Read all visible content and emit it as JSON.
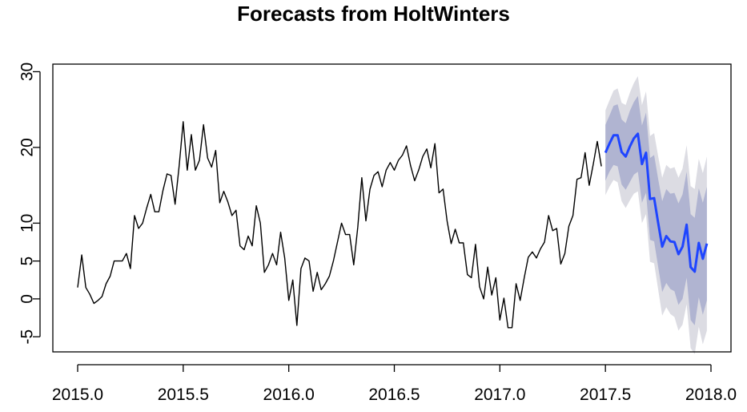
{
  "chart_data": {
    "type": "line",
    "title": "Forecasts from HoltWinters",
    "xlabel": "",
    "ylabel": "",
    "xlim": [
      2015.0,
      2018.0
    ],
    "ylim": [
      -7,
      31
    ],
    "x_ticks": [
      {
        "value": 2015.0,
        "label": "2015.0"
      },
      {
        "value": 2015.5,
        "label": "2015.5"
      },
      {
        "value": 2016.0,
        "label": "2016.0"
      },
      {
        "value": 2016.5,
        "label": "2016.5"
      },
      {
        "value": 2017.0,
        "label": "2017.0"
      },
      {
        "value": 2017.5,
        "label": "2017.5"
      },
      {
        "value": 2018.0,
        "label": "2018.0"
      }
    ],
    "y_ticks": [
      {
        "value": -5,
        "label": "-5"
      },
      {
        "value": 0,
        "label": "0"
      },
      {
        "value": 5,
        "label": "5"
      },
      {
        "value": 10,
        "label": "10"
      },
      {
        "value": 20,
        "label": "20"
      },
      {
        "value": 30,
        "label": "30"
      }
    ],
    "grid": false,
    "colors": {
      "observed": "#000000",
      "forecast": "#1f45ff",
      "band95": "#dcdce3",
      "band80": "#b0b4d1"
    },
    "series": [
      {
        "role": "observed",
        "x": [
          2015.0,
          2015.0192,
          2015.0385,
          2015.0577,
          2015.0769,
          2015.0962,
          2015.1154,
          2015.1346,
          2015.1538,
          2015.1731,
          2015.1923,
          2015.2115,
          2015.2308,
          2015.25,
          2015.2692,
          2015.2885,
          2015.3077,
          2015.3269,
          2015.3462,
          2015.3654,
          2015.3846,
          2015.4038,
          2015.4231,
          2015.4423,
          2015.4615,
          2015.4808,
          2015.5,
          2015.5192,
          2015.5385,
          2015.5577,
          2015.5769,
          2015.5962,
          2015.6154,
          2015.6346,
          2015.6538,
          2015.6731,
          2015.6923,
          2015.7115,
          2015.7308,
          2015.75,
          2015.7692,
          2015.7885,
          2015.8077,
          2015.8269,
          2015.8462,
          2015.8654,
          2015.8846,
          2015.9038,
          2015.9231,
          2015.9423,
          2015.9615,
          2015.9808,
          2016.0,
          2016.0192,
          2016.0385,
          2016.0577,
          2016.0769,
          2016.0962,
          2016.1154,
          2016.1346,
          2016.1538,
          2016.1731,
          2016.1923,
          2016.2115,
          2016.2308,
          2016.25,
          2016.2692,
          2016.2885,
          2016.3077,
          2016.3269,
          2016.3462,
          2016.3654,
          2016.3846,
          2016.4038,
          2016.4231,
          2016.4423,
          2016.4615,
          2016.4808,
          2016.5,
          2016.5192,
          2016.5385,
          2016.5577,
          2016.5769,
          2016.5962,
          2016.6154,
          2016.6346,
          2016.6538,
          2016.6731,
          2016.6923,
          2016.7115,
          2016.7308,
          2016.75,
          2016.7692,
          2016.7885,
          2016.8077,
          2016.8269,
          2016.8462,
          2016.8654,
          2016.8846,
          2016.9038,
          2016.9231,
          2016.9423,
          2016.9615,
          2016.9808,
          2017.0,
          2017.0192,
          2017.0385,
          2017.0577,
          2017.0769,
          2017.0962,
          2017.1154,
          2017.1346,
          2017.1538,
          2017.1731,
          2017.1923,
          2017.2115,
          2017.2308,
          2017.25,
          2017.2692,
          2017.2885,
          2017.3077,
          2017.3269,
          2017.3462,
          2017.3654,
          2017.3846,
          2017.4038,
          2017.4231,
          2017.4423,
          2017.4615,
          2017.4808
        ],
        "y": [
          1.5,
          5.8,
          1.5,
          0.6,
          -0.6,
          -0.2,
          0.3,
          2.0,
          3.0,
          5.0,
          5.0,
          5.0,
          6.0,
          4.0,
          11.0,
          9.3,
          10.0,
          12.0,
          13.8,
          11.5,
          11.5,
          14.3,
          16.5,
          16.3,
          12.5,
          17.6,
          23.4,
          17.0,
          21.7,
          17.0,
          18.3,
          23.0,
          18.6,
          17.4,
          19.6,
          12.7,
          14.2,
          12.8,
          11.0,
          11.7,
          7.0,
          6.5,
          8.3,
          7.0,
          12.3,
          10.0,
          3.5,
          4.5,
          6.0,
          4.5,
          8.8,
          5.4,
          -0.2,
          2.5,
          -3.5,
          4.0,
          5.4,
          5.0,
          1.0,
          3.5,
          1.2,
          2.0,
          3.0,
          5.0,
          7.5,
          10.0,
          8.5,
          8.5,
          4.5,
          9.5,
          16.0,
          10.3,
          14.5,
          16.3,
          16.8,
          14.8,
          17.0,
          18.0,
          17.0,
          18.3,
          19.0,
          20.2,
          17.6,
          15.6,
          17.0,
          18.8,
          19.8,
          17.3,
          20.5,
          14.0,
          14.5,
          10.3,
          7.3,
          9.2,
          7.4,
          7.4,
          3.2,
          2.8,
          7.2,
          1.6,
          0.0,
          4.2,
          0.5,
          2.8,
          -2.8,
          0.1,
          -3.8,
          -3.8,
          2.0,
          -0.2,
          2.8,
          5.5,
          6.2,
          5.4,
          6.6,
          7.5,
          11.0,
          9.0,
          9.3,
          4.6,
          6.0,
          9.6,
          11.0,
          15.8,
          16.0,
          19.3,
          15.0,
          17.8,
          20.8,
          17.5
        ]
      },
      {
        "role": "forecast",
        "x": [
          2017.5,
          2017.5192,
          2017.5385,
          2017.5577,
          2017.5769,
          2017.5962,
          2017.6154,
          2017.6346,
          2017.6538,
          2017.6731,
          2017.6923,
          2017.7115,
          2017.7308,
          2017.75,
          2017.7692,
          2017.7885,
          2017.8077,
          2017.8269,
          2017.8462,
          2017.8654,
          2017.8846,
          2017.9038,
          2017.9231,
          2017.9423,
          2017.9615,
          2017.9808
        ],
        "y": [
          19.3,
          20.5,
          21.6,
          21.6,
          19.4,
          18.8,
          20.1,
          21.2,
          21.8,
          17.8,
          19.3,
          13.2,
          13.3,
          10.0,
          6.9,
          8.3,
          7.6,
          7.5,
          5.9,
          6.9,
          9.8,
          4.2,
          3.6,
          7.4,
          5.3,
          7.3
        ]
      }
    ],
    "bands": [
      {
        "level": "95",
        "lower": [
          13.7,
          14.8,
          15.7,
          15.4,
          12.9,
          12.0,
          13.0,
          13.9,
          14.2,
          10.0,
          11.2,
          4.9,
          4.7,
          1.2,
          -2.2,
          -1.1,
          -2.0,
          -2.4,
          -4.2,
          -3.4,
          -0.7,
          -6.5,
          -7.3,
          -3.7,
          -6.0,
          -4.2
        ],
        "upper": [
          24.9,
          26.2,
          27.5,
          27.8,
          25.9,
          25.6,
          27.2,
          28.5,
          29.4,
          25.6,
          27.4,
          21.5,
          21.9,
          18.8,
          16.0,
          17.7,
          17.2,
          17.4,
          16.0,
          17.2,
          20.3,
          14.9,
          14.5,
          18.5,
          16.6,
          18.8
        ]
      },
      {
        "level": "80",
        "lower": [
          15.6,
          16.8,
          17.7,
          17.5,
          15.1,
          14.4,
          15.4,
          16.4,
          16.8,
          12.7,
          14.0,
          7.8,
          7.6,
          4.2,
          0.9,
          2.1,
          1.3,
          1.0,
          -0.8,
          0.0,
          2.8,
          -2.8,
          -3.5,
          0.2,
          -2.1,
          -0.2
        ],
        "upper": [
          23.0,
          24.2,
          25.5,
          25.7,
          23.7,
          23.2,
          24.8,
          26.0,
          26.8,
          22.9,
          24.6,
          18.6,
          19.0,
          15.8,
          12.9,
          14.5,
          13.9,
          14.0,
          12.6,
          13.8,
          16.8,
          11.2,
          10.7,
          14.6,
          12.7,
          14.8
        ]
      }
    ]
  }
}
